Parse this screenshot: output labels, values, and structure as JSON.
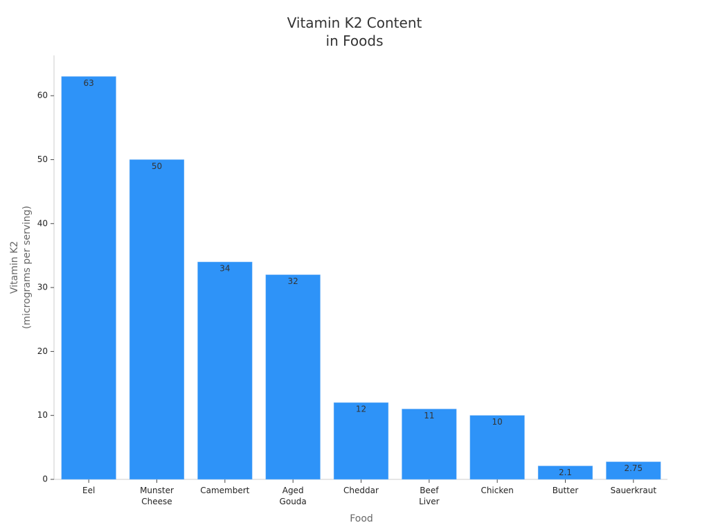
{
  "chart_data": {
    "type": "bar",
    "title": "Vitamin K2 Content\nin Foods",
    "x_label": "Food",
    "y_label": "Vitamin K2\n(micrograms per serving)",
    "categories": [
      "Eel",
      "Munster\nCheese",
      "Camembert",
      "Aged\nGouda",
      "Cheddar",
      "Beef\nLiver",
      "Chicken",
      "Butter",
      "Sauerkraut"
    ],
    "values": [
      63,
      50,
      34,
      32,
      12,
      11,
      10,
      2.1,
      2.75
    ],
    "color": "#2e93f8",
    "ylim": [
      0,
      66.3
    ],
    "yticks": [
      0,
      10,
      20,
      30,
      40,
      50,
      60
    ],
    "grid": false
  }
}
